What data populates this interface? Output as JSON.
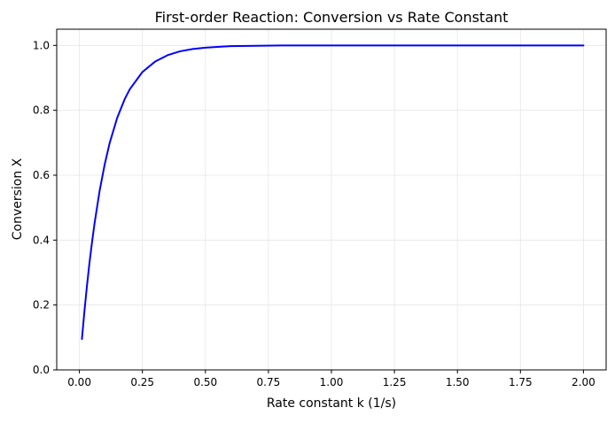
{
  "chart_data": {
    "type": "line",
    "title": "First-order Reaction: Conversion vs Rate Constant",
    "xlabel": "Rate constant k (1/s)",
    "ylabel": "Conversion X",
    "xlim": [
      -0.09,
      2.09
    ],
    "ylim": [
      0.0,
      1.05
    ],
    "xticks": [
      0.0,
      0.25,
      0.5,
      0.75,
      1.0,
      1.25,
      1.5,
      1.75,
      2.0
    ],
    "xtick_labels": [
      "0.00",
      "0.25",
      "0.50",
      "0.75",
      "1.00",
      "1.25",
      "1.50",
      "1.75",
      "2.00"
    ],
    "yticks": [
      0.0,
      0.2,
      0.4,
      0.6,
      0.8,
      1.0
    ],
    "ytick_labels": [
      "0.0",
      "0.2",
      "0.4",
      "0.6",
      "0.8",
      "1.0"
    ],
    "grid": true,
    "legend": "none",
    "series": [
      {
        "color": "#0000ff",
        "x": [
          0.01,
          0.02,
          0.03,
          0.04,
          0.05,
          0.06,
          0.08,
          0.1,
          0.12,
          0.15,
          0.18,
          0.2,
          0.25,
          0.3,
          0.35,
          0.4,
          0.45,
          0.5,
          0.6,
          0.7,
          0.8,
          1.0,
          1.25,
          1.5,
          1.75,
          2.0
        ],
        "y": [
          0.095,
          0.181,
          0.259,
          0.33,
          0.393,
          0.451,
          0.551,
          0.632,
          0.699,
          0.777,
          0.835,
          0.865,
          0.918,
          0.95,
          0.97,
          0.982,
          0.989,
          0.993,
          0.998,
          0.999,
          1.0,
          1.0,
          1.0,
          1.0,
          1.0,
          1.0
        ]
      }
    ]
  }
}
